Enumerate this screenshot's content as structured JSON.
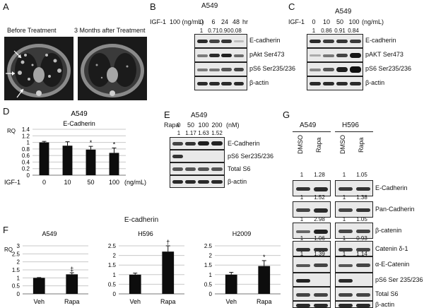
{
  "panels": {
    "A": {
      "letter": "A",
      "before_label": "Before Treatment",
      "after_label": "3 Months after Treatment"
    },
    "B": {
      "letter": "B",
      "cell_line": "A549",
      "treatment": "IGF-1",
      "treatment_conc": "100 (ng/mL)",
      "times": [
        "0",
        "6",
        "24",
        "48"
      ],
      "unit": "hr",
      "quant": [
        "1",
        "0.71",
        "0.90",
        "0.08"
      ],
      "rows": [
        "E-cadherin",
        "pAkt Ser473",
        "pS6 Ser235/236",
        "β-actin"
      ]
    },
    "C": {
      "letter": "C",
      "cell_line": "A549",
      "treatment": "IGF-1",
      "concs": [
        "0",
        "10",
        "50",
        "100"
      ],
      "unit": "(ng/mL)",
      "quant": [
        "1",
        "0.86",
        "0.91",
        "0.84"
      ],
      "rows": [
        "E-cadherin",
        "pAKT Ser473",
        "pS6 Ser235/236",
        "β-actin"
      ]
    },
    "D": {
      "letter": "D"
    },
    "E": {
      "letter": "E",
      "cell_line": "A549",
      "treatment": "Rapa",
      "concs": [
        "0",
        "50",
        "100",
        "200"
      ],
      "unit": "(nM)",
      "quant": [
        "1",
        "1.17",
        "1.63",
        "1.52"
      ],
      "rows": [
        "E-Cadherin",
        "pS6 Ser235/236",
        "Total S6",
        "β-actin"
      ]
    },
    "F": {
      "letter": "F",
      "title": "E-cadherin"
    },
    "G": {
      "letter": "G",
      "groups": [
        "A549",
        "H596"
      ],
      "lanes": [
        "DMSO",
        "Rapa",
        "DMSO",
        "Rapa"
      ],
      "rows": [
        {
          "label": "E-Cadherin",
          "q": [
            "1",
            "1.28",
            "1",
            "1.05"
          ]
        },
        {
          "label": "Pan-Cadherin",
          "q": [
            "1",
            "1.52",
            "1",
            "1.38"
          ]
        },
        {
          "label": "β-catenin",
          "q": [
            "1",
            "2.98",
            "1",
            "1.05"
          ]
        },
        {
          "label": "Catenin δ-1",
          "q": [
            "1",
            "1.06",
            "1",
            "0.93"
          ]
        },
        {
          "label": "α-E-Catenin",
          "q": [
            "1",
            "1.39",
            "1",
            "1.14"
          ]
        },
        {
          "label": "pS6 Ser 235/236",
          "q": []
        },
        {
          "label": "Total S6",
          "q": []
        },
        {
          "label": "β-actin",
          "q": []
        }
      ]
    }
  },
  "chart_data": [
    {
      "panel": "D",
      "type": "bar",
      "title": "A549",
      "subtitle": "E-Cadherin",
      "ylabel": "RQ",
      "xlabel_prefix": "IGF-1",
      "x_unit": "(ng/mL)",
      "categories": [
        "0",
        "10",
        "50",
        "100"
      ],
      "values": [
        1.0,
        0.9,
        0.78,
        0.68
      ],
      "errors": [
        0.03,
        0.12,
        0.1,
        0.15
      ],
      "annotations": [
        "",
        "",
        "*",
        "*"
      ],
      "ylim": [
        0,
        1.4
      ],
      "ticks": [
        "0",
        "0.2",
        "0.4",
        "0.6",
        "0.8",
        "1",
        "1.2",
        "1.4"
      ],
      "grid": true
    },
    {
      "panel": "F",
      "type": "bar",
      "title": "A549",
      "ylabel": "RQ",
      "categories": [
        "Veh",
        "Rapa"
      ],
      "values": [
        1.0,
        1.22
      ],
      "errors": [
        0.02,
        0.1
      ],
      "annotations": [
        "",
        "‡"
      ],
      "ylim": [
        0,
        3
      ],
      "ticks": [
        "0",
        "0.5",
        "1",
        "1.5",
        "2",
        "2.5",
        "3"
      ],
      "grid": true
    },
    {
      "panel": "F",
      "type": "bar",
      "title": "H596",
      "categories": [
        "Veh",
        "Rapa"
      ],
      "values": [
        1.0,
        2.2
      ],
      "errors": [
        0.08,
        0.3
      ],
      "annotations": [
        "",
        "†"
      ],
      "ylim": [
        0,
        2.5
      ],
      "ticks": [
        "0",
        "0.5",
        "1",
        "1.5",
        "2",
        "2.5"
      ],
      "grid": true
    },
    {
      "panel": "F",
      "type": "bar",
      "title": "H2009",
      "categories": [
        "Veh",
        "Rapa"
      ],
      "values": [
        1.0,
        1.45
      ],
      "errors": [
        0.12,
        0.28
      ],
      "annotations": [
        "",
        "*"
      ],
      "ylim": [
        0,
        2.5
      ],
      "ticks": [
        "0",
        "0.5",
        "1",
        "1.5",
        "2",
        "2.5"
      ],
      "grid": true
    }
  ]
}
